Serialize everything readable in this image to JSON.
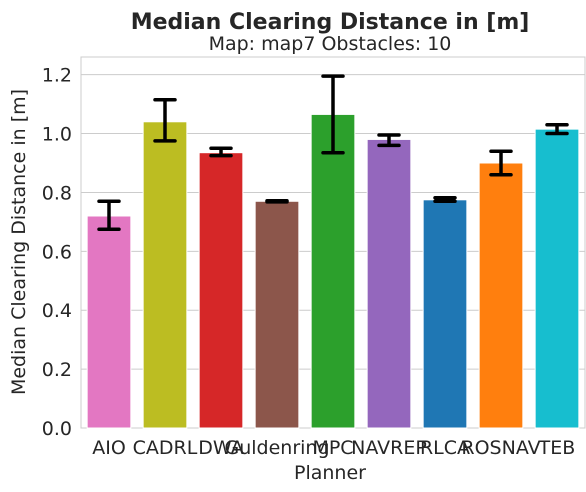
{
  "chart_data": {
    "type": "bar",
    "title": "Median Clearing Distance in [m]",
    "subtitle": "Map: map7 Obstacles: 10",
    "xlabel": "Planner",
    "ylabel": "Median Clearing Distance in [m]",
    "ylim": [
      0,
      1.26
    ],
    "yticks": [
      0.0,
      0.2,
      0.4,
      0.6,
      0.8,
      1.0,
      1.2
    ],
    "ytick_labels": [
      "0.0",
      "0.2",
      "0.4",
      "0.6",
      "0.8",
      "1.0",
      "1.2"
    ],
    "grid": "horizontal",
    "categories": [
      "AIO",
      "CADRL",
      "DWA",
      "Guldenring",
      "MPC",
      "NAVREP",
      "RLCA",
      "ROSNAV",
      "TEB"
    ],
    "values": [
      0.72,
      1.04,
      0.935,
      0.77,
      1.065,
      0.98,
      0.775,
      0.9,
      1.015
    ],
    "error_low": [
      0.675,
      0.975,
      0.925,
      0.768,
      0.935,
      0.96,
      0.77,
      0.86,
      1.0
    ],
    "error_high": [
      0.77,
      1.115,
      0.95,
      0.772,
      1.195,
      0.995,
      0.782,
      0.94,
      1.03
    ],
    "colors": [
      "#e377c2",
      "#bcbd22",
      "#d62728",
      "#8c564b",
      "#2ca02c",
      "#9467bd",
      "#1f77b4",
      "#ff7f0e",
      "#17becf"
    ]
  }
}
